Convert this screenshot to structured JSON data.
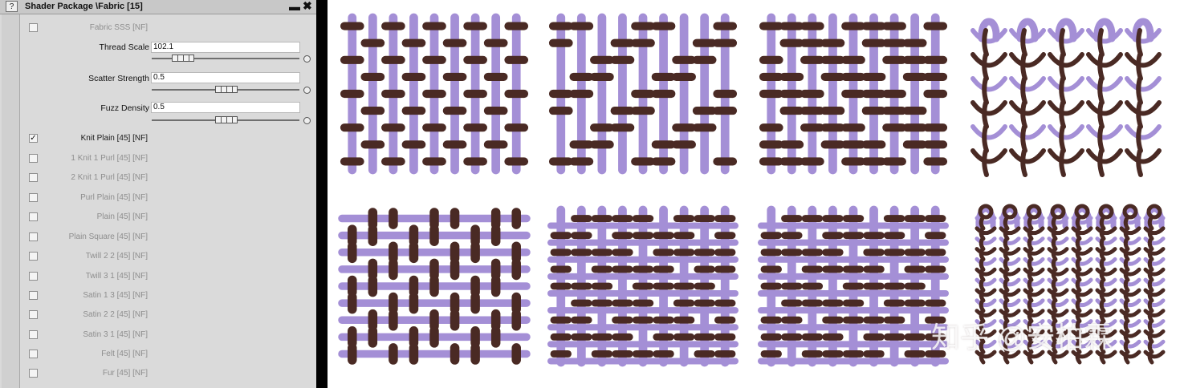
{
  "window": {
    "title": "Shader Package \\Fabric [15]",
    "help_glyph": "?",
    "minimize_glyph": "▬",
    "close_glyph": "✖"
  },
  "materials": [
    {
      "label": "Fabric SSS [NF]",
      "checked": false
    },
    {
      "label": "Knit Plain [45] [NF]",
      "checked": true
    },
    {
      "label": "1 Knit 1 Purl [45] [NF]",
      "checked": false
    },
    {
      "label": "2 Knit 1 Purl [45] [NF]",
      "checked": false
    },
    {
      "label": "Purl Plain [45] [NF]",
      "checked": false
    },
    {
      "label": "Plain [45] [NF]",
      "checked": false
    },
    {
      "label": "Plain Square [45] [NF]",
      "checked": false
    },
    {
      "label": "Twill 2 2 [45] [NF]",
      "checked": false
    },
    {
      "label": "Twill 3 1 [45] [NF]",
      "checked": false
    },
    {
      "label": "Satin 1 3 [45] [NF]",
      "checked": false
    },
    {
      "label": "Satin 2 2 [45] [NF]",
      "checked": false
    },
    {
      "label": "Satin 3 1 [45] [NF]",
      "checked": false
    },
    {
      "label": "Felt [45] [NF]",
      "checked": false
    },
    {
      "label": "Fur [45] [NF]",
      "checked": false
    }
  ],
  "params": [
    {
      "label": "Thread Scale",
      "value": "102.1",
      "level": 0.2
    },
    {
      "label": "Scatter Strength",
      "value": "0.5",
      "level": 0.5
    },
    {
      "label": "Fuzz Density",
      "value": "0.5",
      "level": 0.5
    }
  ],
  "colors": {
    "weft": "#a48fd6",
    "warp": "#4a2a24"
  },
  "patterns": [
    {
      "type": "plain"
    },
    {
      "type": "twill"
    },
    {
      "type": "twill-long"
    },
    {
      "type": "knit-loops"
    },
    {
      "type": "vertical-long"
    },
    {
      "type": "satin"
    },
    {
      "type": "satin-alt"
    },
    {
      "type": "knit-dense"
    }
  ],
  "watermark": "知乎 @安柏霖"
}
